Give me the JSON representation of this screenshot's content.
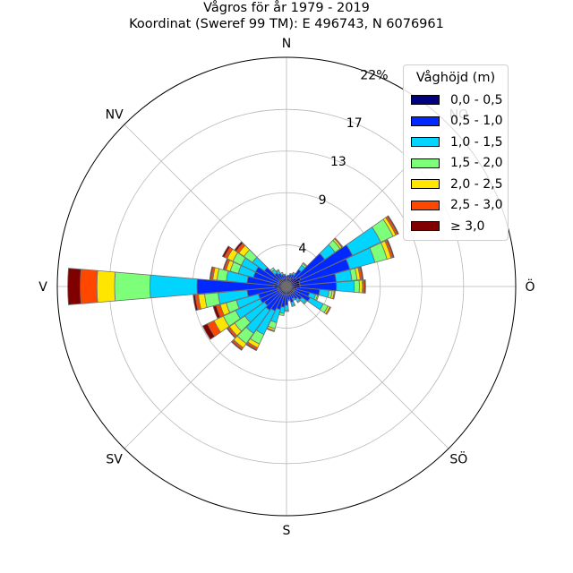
{
  "title_line1": "Vågros för år 1979 - 2019",
  "title_line2": "Koordinat (Sweref 99 TM): E 496743, N 6076961",
  "chart_data": {
    "type": "windrose",
    "unit": "%",
    "rmax": 22,
    "radial_ticks": [
      4,
      9,
      13,
      17,
      22
    ],
    "radial_tick_labels": [
      "4",
      "9",
      "13",
      "17",
      "22%"
    ],
    "directions": [
      {
        "label": "N",
        "angle": 0
      },
      {
        "label": "NO",
        "angle": 45
      },
      {
        "label": "Ö",
        "angle": 90
      },
      {
        "label": "SÖ",
        "angle": 135
      },
      {
        "label": "S",
        "angle": 180
      },
      {
        "label": "SV",
        "angle": 225
      },
      {
        "label": "V",
        "angle": 270
      },
      {
        "label": "NV",
        "angle": 315
      }
    ],
    "legend_title": "Våghöjd (m)",
    "bins": [
      {
        "label": "0,0 - 0,5",
        "color": "#000080"
      },
      {
        "label": "0,5 - 1,0",
        "color": "#0028ff"
      },
      {
        "label": "1,0 - 1,5",
        "color": "#00d4ff"
      },
      {
        "label": "1,5 - 2,0",
        "color": "#7dff7a"
      },
      {
        "label": "2,0 - 2,5",
        "color": "#ffe600"
      },
      {
        "label": "2,5 - 3,0",
        "color": "#ff4700"
      },
      {
        "label": "≥ 3,0",
        "color": "#800000"
      }
    ],
    "sector_width_deg": 10,
    "sectors": [
      {
        "angle": 0,
        "values": [
          0.8,
          0.2,
          0.0,
          0.0,
          0.0,
          0.0,
          0.0
        ]
      },
      {
        "angle": 10,
        "values": [
          0.8,
          0.3,
          0.0,
          0.0,
          0.0,
          0.0,
          0.0
        ]
      },
      {
        "angle": 20,
        "values": [
          0.8,
          0.4,
          0.1,
          0.0,
          0.0,
          0.0,
          0.0
        ]
      },
      {
        "angle": 30,
        "values": [
          0.8,
          0.5,
          0.2,
          0.0,
          0.0,
          0.0,
          0.0
        ]
      },
      {
        "angle": 40,
        "values": [
          1.0,
          1.0,
          0.5,
          0.2,
          0.1,
          0.0,
          0.0
        ]
      },
      {
        "angle": 50,
        "values": [
          1.2,
          3.3,
          1.2,
          0.6,
          0.2,
          0.1,
          0.0
        ]
      },
      {
        "angle": 60,
        "values": [
          1.5,
          5.5,
          3.0,
          1.3,
          0.3,
          0.2,
          0.1
        ]
      },
      {
        "angle": 70,
        "values": [
          1.3,
          5.0,
          2.5,
          1.2,
          0.4,
          0.2,
          0.1
        ]
      },
      {
        "angle": 80,
        "values": [
          1.3,
          3.5,
          1.5,
          0.5,
          0.3,
          0.2,
          0.1
        ]
      },
      {
        "angle": 90,
        "values": [
          1.3,
          3.5,
          1.7,
          0.5,
          0.3,
          0.2,
          0.1
        ]
      },
      {
        "angle": 100,
        "values": [
          1.0,
          2.2,
          0.9,
          0.3,
          0.2,
          0.1,
          0.0
        ]
      },
      {
        "angle": 110,
        "values": [
          0.8,
          1.5,
          0.6,
          0.2,
          0.1,
          0.0,
          0.0
        ]
      },
      {
        "angle": 120,
        "values": [
          0.8,
          1.7,
          1.4,
          0.5,
          0.2,
          0.1,
          0.0
        ]
      },
      {
        "angle": 130,
        "values": [
          0.8,
          1.0,
          0.5,
          0.1,
          0.0,
          0.0,
          0.0
        ]
      },
      {
        "angle": 140,
        "values": [
          0.8,
          0.7,
          0.3,
          0.1,
          0.0,
          0.0,
          0.0
        ]
      },
      {
        "angle": 150,
        "values": [
          0.8,
          0.5,
          0.2,
          0.0,
          0.0,
          0.0,
          0.0
        ]
      },
      {
        "angle": 160,
        "values": [
          0.8,
          0.8,
          0.3,
          0.1,
          0.0,
          0.0,
          0.0
        ]
      },
      {
        "angle": 170,
        "values": [
          0.8,
          0.5,
          0.1,
          0.0,
          0.0,
          0.0,
          0.0
        ]
      },
      {
        "angle": 180,
        "values": [
          0.8,
          1.0,
          0.5,
          0.1,
          0.0,
          0.0,
          0.0
        ]
      },
      {
        "angle": 190,
        "values": [
          0.8,
          1.2,
          0.6,
          0.2,
          0.0,
          0.0,
          0.0
        ]
      },
      {
        "angle": 200,
        "values": [
          0.8,
          1.5,
          1.3,
          0.6,
          0.2,
          0.1,
          0.0
        ]
      },
      {
        "angle": 210,
        "values": [
          0.8,
          1.8,
          2.5,
          1.0,
          0.4,
          0.2,
          0.1
        ]
      },
      {
        "angle": 220,
        "values": [
          0.8,
          2.0,
          2.7,
          1.2,
          0.5,
          0.2,
          0.1
        ]
      },
      {
        "angle": 230,
        "values": [
          0.8,
          1.8,
          2.3,
          1.2,
          0.6,
          0.2,
          0.1
        ]
      },
      {
        "angle": 240,
        "values": [
          0.8,
          2.0,
          2.6,
          1.3,
          1.0,
          0.7,
          0.5
        ]
      },
      {
        "angle": 250,
        "values": [
          0.8,
          2.0,
          2.2,
          1.0,
          0.6,
          0.4,
          0.3
        ]
      },
      {
        "angle": 260,
        "values": [
          0.8,
          3.0,
          2.8,
          1.3,
          0.6,
          0.3,
          0.2
        ]
      },
      {
        "angle": 270,
        "values": [
          1.2,
          7.4,
          4.5,
          3.4,
          1.7,
          1.6,
          1.2
        ]
      },
      {
        "angle": 280,
        "values": [
          0.8,
          3.0,
          2.0,
          0.9,
          0.4,
          0.2,
          0.1
        ]
      },
      {
        "angle": 290,
        "values": [
          0.8,
          2.5,
          1.5,
          0.8,
          0.4,
          0.2,
          0.1
        ]
      },
      {
        "angle": 300,
        "values": [
          0.8,
          2.5,
          1.5,
          0.9,
          0.6,
          0.3,
          0.2
        ]
      },
      {
        "angle": 310,
        "values": [
          0.8,
          1.8,
          1.4,
          1.0,
          0.6,
          0.3,
          0.2
        ]
      },
      {
        "angle": 320,
        "values": [
          0.8,
          0.8,
          0.4,
          0.2,
          0.0,
          0.0,
          0.0
        ]
      },
      {
        "angle": 330,
        "values": [
          0.8,
          0.6,
          0.3,
          0.1,
          0.0,
          0.0,
          0.0
        ]
      },
      {
        "angle": 340,
        "values": [
          0.8,
          0.4,
          0.2,
          0.0,
          0.0,
          0.0,
          0.0
        ]
      },
      {
        "angle": 350,
        "values": [
          0.8,
          0.3,
          0.1,
          0.0,
          0.0,
          0.0,
          0.0
        ]
      }
    ]
  }
}
